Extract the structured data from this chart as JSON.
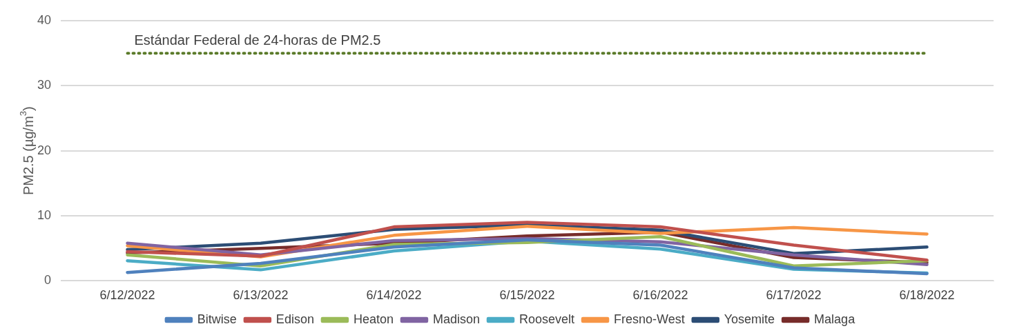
{
  "chart_data": {
    "type": "line",
    "ylabel": "PM2.5 (µg/m$^{3}$)",
    "categories": [
      "6/12/2022",
      "6/13/2022",
      "6/14/2022",
      "6/15/2022",
      "6/16/2022",
      "6/17/2022",
      "6/18/2022"
    ],
    "ylim": [
      0,
      40
    ],
    "yticks": [
      0,
      10,
      20,
      30,
      40
    ],
    "grid": "y",
    "legend": "bottom",
    "marker": "none",
    "line_style": "solid",
    "ref_lines": [
      {
        "axis": "y",
        "value": 35,
        "label": "Estándar Federal de 24-horas de PM2.5",
        "color": "#5b7b2a",
        "line_style": "dotted"
      }
    ],
    "series": [
      {
        "name": "Bitwise",
        "color": "#4f81bd",
        "values": [
          1.3,
          2.7,
          5.2,
          6.3,
          5.5,
          2.0,
          1.1
        ]
      },
      {
        "name": "Edison",
        "color": "#c0504d",
        "values": [
          4.5,
          3.8,
          8.3,
          9.0,
          8.3,
          5.5,
          3.2
        ]
      },
      {
        "name": "Heaton",
        "color": "#9bbb59",
        "values": [
          4.0,
          2.3,
          5.6,
          5.9,
          6.8,
          2.3,
          3.1
        ]
      },
      {
        "name": "Madison",
        "color": "#8064a2",
        "values": [
          5.8,
          4.0,
          6.2,
          6.5,
          6.0,
          4.0,
          2.5
        ]
      },
      {
        "name": "Roosevelt",
        "color": "#4bacc6",
        "values": [
          3.1,
          1.7,
          4.6,
          6.1,
          4.9,
          1.8,
          1.2
        ]
      },
      {
        "name": "Fresno-West",
        "color": "#f79646",
        "values": [
          5.4,
          3.7,
          7.0,
          8.4,
          7.3,
          8.2,
          7.2
        ]
      },
      {
        "name": "Yosemite",
        "color": "#2c4d75",
        "values": [
          4.8,
          5.8,
          7.9,
          8.6,
          7.8,
          4.2,
          5.2
        ]
      },
      {
        "name": "Malaga",
        "color": "#772c2a",
        "values": [
          4.3,
          5.0,
          5.8,
          6.9,
          7.5,
          3.6,
          2.8
        ]
      }
    ]
  }
}
